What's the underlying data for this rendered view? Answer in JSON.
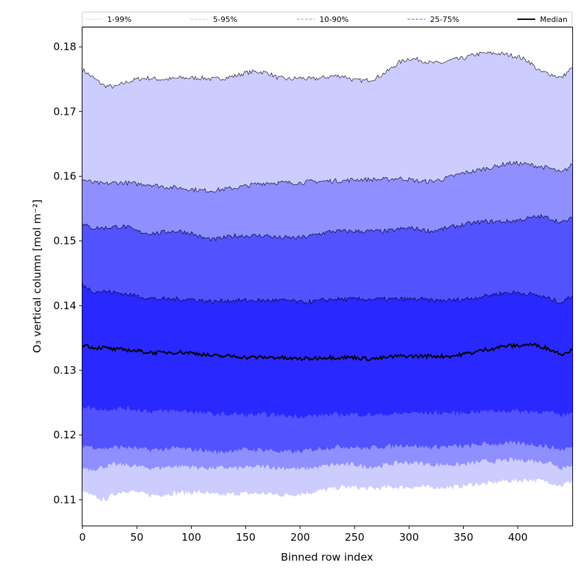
{
  "chart_data": {
    "type": "area",
    "xlabel": "Binned row index",
    "ylabel": "O₃ vertical column [mol m⁻²]",
    "xlim": [
      0,
      450
    ],
    "ylim": [
      0.106,
      0.183
    ],
    "x_ticks": [
      {
        "value": 0,
        "label": "0"
      },
      {
        "value": 50,
        "label": "50"
      },
      {
        "value": 100,
        "label": "100"
      },
      {
        "value": 150,
        "label": "150"
      },
      {
        "value": 200,
        "label": "200"
      },
      {
        "value": 250,
        "label": "250"
      },
      {
        "value": 300,
        "label": "300"
      },
      {
        "value": 350,
        "label": "350"
      },
      {
        "value": 400,
        "label": "400"
      }
    ],
    "y_ticks": [
      {
        "value": 0.11,
        "label": "0.11"
      },
      {
        "value": 0.12,
        "label": "0.12"
      },
      {
        "value": 0.13,
        "label": "0.13"
      },
      {
        "value": 0.14,
        "label": "0.14"
      },
      {
        "value": 0.15,
        "label": "0.15"
      },
      {
        "value": 0.16,
        "label": "0.16"
      },
      {
        "value": 0.17,
        "label": "0.17"
      },
      {
        "value": 0.18,
        "label": "0.18"
      }
    ],
    "grid": false,
    "legend_position": "top, outside plot, single row",
    "x": [
      0,
      10,
      20,
      30,
      40,
      50,
      60,
      70,
      80,
      90,
      100,
      110,
      120,
      130,
      140,
      150,
      160,
      170,
      180,
      190,
      200,
      210,
      220,
      230,
      240,
      250,
      260,
      270,
      280,
      290,
      300,
      310,
      320,
      330,
      340,
      350,
      360,
      370,
      380,
      390,
      400,
      410,
      420,
      430,
      440,
      450
    ],
    "bands": [
      {
        "name": "1-99%",
        "color": "#ccccff",
        "line_color": "#000000",
        "line_style": "solid",
        "lower": [
          0.1115,
          0.1105,
          0.11,
          0.111,
          0.1115,
          0.1112,
          0.1108,
          0.1108,
          0.111,
          0.1112,
          0.1112,
          0.1112,
          0.1108,
          0.1108,
          0.111,
          0.111,
          0.111,
          0.111,
          0.1108,
          0.1108,
          0.111,
          0.1112,
          0.1115,
          0.1118,
          0.112,
          0.112,
          0.1118,
          0.1118,
          0.112,
          0.112,
          0.112,
          0.112,
          0.112,
          0.112,
          0.112,
          0.1122,
          0.1125,
          0.1125,
          0.1128,
          0.113,
          0.113,
          0.1132,
          0.113,
          0.1128,
          0.1122,
          0.113
        ],
        "upper": [
          0.1765,
          0.1752,
          0.174,
          0.1738,
          0.1745,
          0.175,
          0.1752,
          0.175,
          0.175,
          0.1752,
          0.1752,
          0.1752,
          0.175,
          0.1752,
          0.1755,
          0.176,
          0.1762,
          0.176,
          0.1752,
          0.175,
          0.1752,
          0.175,
          0.1752,
          0.1755,
          0.1755,
          0.1748,
          0.1748,
          0.1752,
          0.1762,
          0.1775,
          0.1782,
          0.178,
          0.1775,
          0.1775,
          0.178,
          0.1782,
          0.1788,
          0.179,
          0.179,
          0.1788,
          0.1785,
          0.1778,
          0.1762,
          0.1758,
          0.1752,
          0.1768
        ]
      },
      {
        "name": "5-95%",
        "color": "#8f8fff",
        "line_color": "#000000",
        "line_style": "solid",
        "lower": [
          0.115,
          0.1148,
          0.1152,
          0.1155,
          0.1155,
          0.1152,
          0.115,
          0.115,
          0.1152,
          0.1153,
          0.1152,
          0.115,
          0.115,
          0.115,
          0.115,
          0.115,
          0.1152,
          0.1152,
          0.115,
          0.115,
          0.1148,
          0.115,
          0.1152,
          0.1155,
          0.1155,
          0.1155,
          0.1152,
          0.1152,
          0.1155,
          0.1158,
          0.1158,
          0.1158,
          0.1155,
          0.1155,
          0.1155,
          0.1155,
          0.1158,
          0.116,
          0.116,
          0.1162,
          0.1162,
          0.1162,
          0.116,
          0.1158,
          0.115,
          0.1155
        ],
        "upper": [
          0.1595,
          0.159,
          0.1588,
          0.159,
          0.159,
          0.1588,
          0.1588,
          0.1585,
          0.1583,
          0.1582,
          0.158,
          0.1578,
          0.1578,
          0.158,
          0.1582,
          0.1585,
          0.1588,
          0.159,
          0.159,
          0.159,
          0.159,
          0.1592,
          0.1592,
          0.1593,
          0.1593,
          0.1595,
          0.1595,
          0.1595,
          0.1595,
          0.1597,
          0.1595,
          0.1592,
          0.1592,
          0.1595,
          0.16,
          0.1605,
          0.1608,
          0.1612,
          0.1615,
          0.162,
          0.162,
          0.1618,
          0.1615,
          0.1612,
          0.1605,
          0.1618
        ]
      },
      {
        "name": "10-90%",
        "color": "#5252ff",
        "line_color": "#000000",
        "line_style": "solid",
        "lower": [
          0.1185,
          0.1182,
          0.118,
          0.1182,
          0.1182,
          0.118,
          0.1178,
          0.1178,
          0.118,
          0.118,
          0.1178,
          0.1178,
          0.1175,
          0.1175,
          0.1178,
          0.1178,
          0.1178,
          0.1178,
          0.1175,
          0.1175,
          0.1175,
          0.1178,
          0.118,
          0.1182,
          0.1183,
          0.1182,
          0.118,
          0.1182,
          0.1183,
          0.1185,
          0.1185,
          0.1183,
          0.1182,
          0.1183,
          0.1183,
          0.1183,
          0.1185,
          0.1187,
          0.1187,
          0.1188,
          0.1188,
          0.1187,
          0.1185,
          0.1182,
          0.1178,
          0.1182
        ],
        "upper": [
          0.1525,
          0.152,
          0.152,
          0.1522,
          0.1522,
          0.1515,
          0.1512,
          0.1512,
          0.1515,
          0.1515,
          0.1512,
          0.1505,
          0.1502,
          0.1505,
          0.1508,
          0.1508,
          0.1508,
          0.1508,
          0.1505,
          0.1505,
          0.1505,
          0.1508,
          0.1512,
          0.1515,
          0.1515,
          0.1515,
          0.1515,
          0.1515,
          0.1515,
          0.1518,
          0.152,
          0.1518,
          0.1515,
          0.1518,
          0.1522,
          0.1525,
          0.1528,
          0.153,
          0.153,
          0.153,
          0.1532,
          0.1535,
          0.1538,
          0.1535,
          0.1528,
          0.1535
        ]
      },
      {
        "name": "25-75%",
        "color": "#2929ff",
        "line_color": "#000000",
        "line_style": "solid",
        "lower": [
          0.1245,
          0.1242,
          0.124,
          0.1242,
          0.1242,
          0.124,
          0.1238,
          0.1237,
          0.1238,
          0.1238,
          0.1237,
          0.1235,
          0.1233,
          0.1233,
          0.1233,
          0.1232,
          0.1232,
          0.1232,
          0.1232,
          0.123,
          0.123,
          0.123,
          0.1232,
          0.1232,
          0.1233,
          0.1233,
          0.1232,
          0.1232,
          0.1233,
          0.1233,
          0.1235,
          0.1235,
          0.1235,
          0.1235,
          0.1235,
          0.1235,
          0.1237,
          0.1238,
          0.1238,
          0.1238,
          0.1238,
          0.1237,
          0.1237,
          0.1235,
          0.1232,
          0.1235
        ],
        "upper": [
          0.1432,
          0.1422,
          0.1422,
          0.142,
          0.1418,
          0.1415,
          0.1412,
          0.141,
          0.141,
          0.141,
          0.141,
          0.1408,
          0.1406,
          0.1408,
          0.1408,
          0.1408,
          0.1408,
          0.1408,
          0.1408,
          0.1408,
          0.1405,
          0.1406,
          0.1408,
          0.141,
          0.141,
          0.141,
          0.141,
          0.141,
          0.141,
          0.141,
          0.141,
          0.141,
          0.1408,
          0.1408,
          0.1408,
          0.141,
          0.1412,
          0.1415,
          0.1418,
          0.142,
          0.142,
          0.1418,
          0.1415,
          0.141,
          0.1405,
          0.1415
        ]
      }
    ],
    "series": [
      {
        "name": "Median",
        "color": "#000000",
        "line_style": "solid",
        "values": [
          0.134,
          0.1335,
          0.1335,
          0.1332,
          0.1332,
          0.133,
          0.1328,
          0.1327,
          0.1328,
          0.1328,
          0.1327,
          0.1325,
          0.1322,
          0.1322,
          0.1322,
          0.132,
          0.132,
          0.132,
          0.132,
          0.1318,
          0.1318,
          0.1318,
          0.132,
          0.132,
          0.132,
          0.132,
          0.1318,
          0.1318,
          0.132,
          0.1322,
          0.1322,
          0.1322,
          0.1322,
          0.1322,
          0.1322,
          0.1325,
          0.1328,
          0.1332,
          0.1335,
          0.1338,
          0.1338,
          0.134,
          0.1338,
          0.1332,
          0.1325,
          0.1332
        ]
      }
    ],
    "legend": [
      {
        "label": "1-99%",
        "color": "#dddddd",
        "style": "solid"
      },
      {
        "label": "5-95%",
        "color": "#c0c0ff",
        "style": "dashed"
      },
      {
        "label": "10-90%",
        "color": "#8a8aff",
        "style": "dashed"
      },
      {
        "label": "25-75%",
        "color": "#5050ff",
        "style": "dashed"
      },
      {
        "label": "Median",
        "color": "#000000",
        "style": "solid"
      }
    ]
  }
}
